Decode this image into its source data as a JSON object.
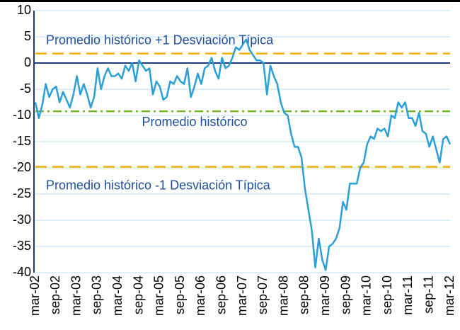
{
  "chart_data": {
    "type": "line",
    "categories": [
      "mar-02",
      null,
      null,
      null,
      null,
      null,
      "sep-02",
      null,
      null,
      null,
      null,
      null,
      "mar-03",
      null,
      null,
      null,
      null,
      null,
      "sep-03",
      null,
      null,
      null,
      null,
      null,
      "mar-04",
      null,
      null,
      null,
      null,
      null,
      "sep-04",
      null,
      null,
      null,
      null,
      null,
      "mar-05",
      null,
      null,
      null,
      null,
      null,
      "sep-05",
      null,
      null,
      null,
      null,
      null,
      "mar-06",
      null,
      null,
      null,
      null,
      null,
      "sep-06",
      null,
      null,
      null,
      null,
      null,
      "mar-07",
      null,
      null,
      null,
      null,
      null,
      "sep-07",
      null,
      null,
      null,
      null,
      null,
      "mar-08",
      null,
      null,
      null,
      null,
      null,
      "sep-08",
      null,
      null,
      null,
      null,
      null,
      "mar-09",
      null,
      null,
      null,
      null,
      null,
      "sep-09",
      null,
      null,
      null,
      null,
      null,
      "mar-10",
      null,
      null,
      null,
      null,
      null,
      "sep-10",
      null,
      null,
      null,
      null,
      null,
      "mar-11",
      null,
      null,
      null,
      null,
      null,
      "sep-11",
      null,
      null,
      null,
      null,
      null,
      "mar-12"
    ],
    "values": [
      -7.5,
      -10.5,
      -8,
      -4,
      -6.5,
      -5,
      -4.5,
      -7.5,
      -5.5,
      -7,
      -8.5,
      -6,
      -2.5,
      -6,
      -4,
      -6,
      -8.5,
      -6.5,
      -1,
      -5,
      -2.5,
      -1,
      -2.5,
      -2.5,
      -2,
      -3,
      -0.5,
      -1.5,
      0,
      -3.5,
      0.5,
      -0.5,
      -1.5,
      -1,
      -6,
      -3.5,
      -4.5,
      -7,
      -6.5,
      -3.5,
      -4,
      -2.5,
      -3.5,
      -4,
      -1,
      -6.5,
      -4.5,
      -2,
      -4,
      -1,
      -0.5,
      1,
      -1.5,
      -3,
      1,
      -1,
      -0.5,
      1,
      3,
      2.5,
      3.5,
      4.5,
      2.5,
      1.5,
      0.5,
      0.5,
      0,
      -6,
      -0.5,
      -2.5,
      -4,
      -7.5,
      -9.5,
      -10,
      -13.5,
      -16,
      -16,
      -18,
      -24,
      -28,
      -32,
      -39,
      -33.5,
      -37.5,
      -39.5,
      -35,
      -34.5,
      -33.5,
      -31.5,
      -26.5,
      -28,
      -23,
      -23,
      -23,
      -20,
      -19,
      -15.5,
      -14,
      -14.5,
      -12.5,
      -13,
      -12.5,
      -14,
      -10,
      -10.5,
      -7.5,
      -8.5,
      -7.5,
      -10.5,
      -10.5,
      -12,
      -9.5,
      -13,
      -13.5,
      -16,
      -14,
      -16.5,
      -19,
      -14.5,
      -14,
      -15.5
    ],
    "color": "#2a9fd8",
    "ylim": [
      -40,
      10
    ],
    "yticks": [
      -40,
      -35,
      -30,
      -25,
      -20,
      -15,
      -10,
      -5,
      0,
      5,
      10
    ],
    "grid": true,
    "reference_lines": [
      {
        "label": "Promedio histórico +1 Desviación Típica",
        "value": 1.8,
        "color": "#f0b400",
        "style": "dashed"
      },
      {
        "label": "Promedio histórico",
        "value": -9.2,
        "color": "#78b428",
        "style": "dashdot"
      },
      {
        "label": "Promedio histórico -1 Desviación Típica",
        "value": -19.8,
        "color": "#f0b400",
        "style": "dashed"
      }
    ]
  }
}
